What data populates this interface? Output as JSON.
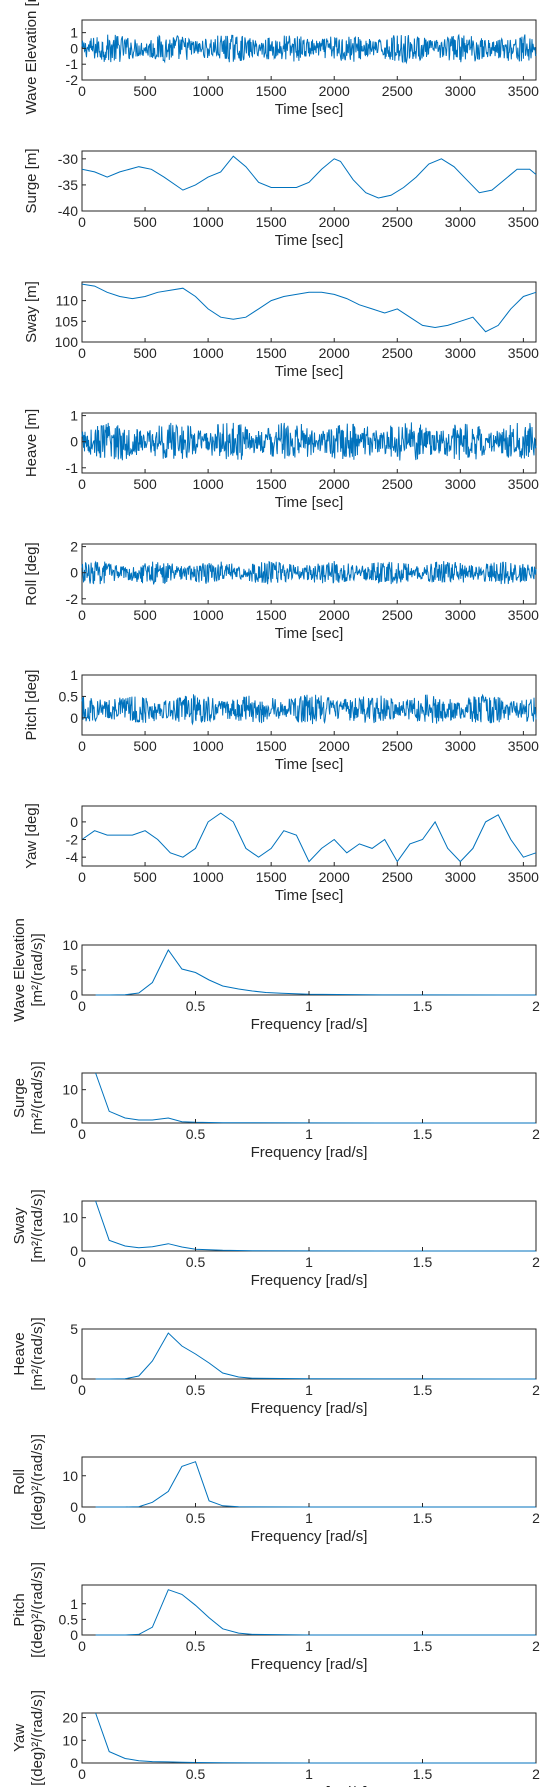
{
  "chart_data": [
    {
      "type": "line",
      "id": "ts-wave",
      "ylabel": "Wave Elevation [m]",
      "xlabel": "Time [sec]",
      "xlim": [
        0,
        3600
      ],
      "ylim": [
        -2,
        1.8
      ],
      "xticks": [
        "0",
        "500",
        "1000",
        "1500",
        "2000",
        "2500",
        "3000",
        "3500"
      ],
      "xtickvals": [
        0,
        500,
        1000,
        1500,
        2000,
        2500,
        3000,
        3500
      ],
      "yticks": [
        "-2",
        "-1",
        "0",
        "1"
      ],
      "ytickvals": [
        -2,
        -1,
        0,
        1
      ],
      "signal": {
        "kind": "noise",
        "amp": 0.9,
        "base": 0
      }
    },
    {
      "type": "line",
      "id": "ts-surge",
      "ylabel": "Surge [m]",
      "xlabel": "Time [sec]",
      "xlim": [
        0,
        3600
      ],
      "ylim": [
        -40,
        -28.5
      ],
      "xticks": [
        "0",
        "500",
        "1000",
        "1500",
        "2000",
        "2500",
        "3000",
        "3500"
      ],
      "xtickvals": [
        0,
        500,
        1000,
        1500,
        2000,
        2500,
        3000,
        3500
      ],
      "yticks": [
        "-40",
        "-35",
        "-30"
      ],
      "ytickvals": [
        -40,
        -35,
        -30
      ],
      "x": [
        0,
        100,
        200,
        300,
        450,
        550,
        650,
        800,
        900,
        1000,
        1100,
        1200,
        1300,
        1400,
        1500,
        1600,
        1700,
        1800,
        1900,
        2000,
        2050,
        2150,
        2250,
        2350,
        2450,
        2550,
        2650,
        2750,
        2850,
        2950,
        3050,
        3150,
        3250,
        3350,
        3450,
        3550,
        3600
      ],
      "y": [
        -32,
        -32.5,
        -33.5,
        -32.5,
        -31.5,
        -32,
        -33.5,
        -36,
        -35,
        -33.5,
        -32.5,
        -29.5,
        -31.5,
        -34.5,
        -35.5,
        -35.5,
        -35.5,
        -34.5,
        -32,
        -30,
        -30.5,
        -34,
        -36.5,
        -37.5,
        -37,
        -35.5,
        -33.5,
        -31,
        -30,
        -31.5,
        -34,
        -36.5,
        -36,
        -34,
        -32,
        -32,
        -33
      ]
    },
    {
      "type": "line",
      "id": "ts-sway",
      "ylabel": "Sway [m]",
      "xlabel": "Time [sec]",
      "xlim": [
        0,
        3600
      ],
      "ylim": [
        100,
        114.5
      ],
      "xticks": [
        "0",
        "500",
        "1000",
        "1500",
        "2000",
        "2500",
        "3000",
        "3500"
      ],
      "xtickvals": [
        0,
        500,
        1000,
        1500,
        2000,
        2500,
        3000,
        3500
      ],
      "yticks": [
        "100",
        "105",
        "110"
      ],
      "ytickvals": [
        100,
        105,
        110
      ],
      "x": [
        0,
        100,
        200,
        300,
        400,
        500,
        600,
        700,
        800,
        900,
        1000,
        1100,
        1200,
        1300,
        1400,
        1500,
        1600,
        1700,
        1800,
        1900,
        2000,
        2100,
        2200,
        2300,
        2400,
        2500,
        2600,
        2700,
        2800,
        2900,
        3000,
        3100,
        3200,
        3300,
        3400,
        3500,
        3600
      ],
      "y": [
        114,
        113.5,
        112,
        111,
        110.5,
        111,
        112,
        112.5,
        113,
        111,
        108,
        106,
        105.5,
        106,
        108,
        110,
        111,
        111.5,
        112,
        112,
        111.5,
        110.5,
        109,
        108,
        107,
        108,
        106,
        104,
        103.5,
        104,
        105,
        106,
        102.5,
        104,
        108,
        111,
        112
      ]
    },
    {
      "type": "line",
      "id": "ts-heave",
      "ylabel": "Heave [m]",
      "xlabel": "Time [sec]",
      "xlim": [
        0,
        3600
      ],
      "ylim": [
        -1.2,
        1.1
      ],
      "xticks": [
        "0",
        "500",
        "1000",
        "1500",
        "2000",
        "2500",
        "3000",
        "3500"
      ],
      "xtickvals": [
        0,
        500,
        1000,
        1500,
        2000,
        2500,
        3000,
        3500
      ],
      "yticks": [
        "-1",
        "0",
        "1"
      ],
      "ytickvals": [
        -1,
        0,
        1
      ],
      "signal": {
        "kind": "noise",
        "amp": 0.75,
        "base": 0
      }
    },
    {
      "type": "line",
      "id": "ts-roll",
      "ylabel": "Roll [deg]",
      "xlabel": "Time [sec]",
      "xlim": [
        0,
        3600
      ],
      "ylim": [
        -2.4,
        2.2
      ],
      "xticks": [
        "0",
        "500",
        "1000",
        "1500",
        "2000",
        "2500",
        "3000",
        "3500"
      ],
      "xtickvals": [
        0,
        500,
        1000,
        1500,
        2000,
        2500,
        3000,
        3500
      ],
      "yticks": [
        "-2",
        "0",
        "2"
      ],
      "ytickvals": [
        -2,
        0,
        2
      ],
      "signal": {
        "kind": "noise",
        "amp": 0.9,
        "base": 0
      }
    },
    {
      "type": "line",
      "id": "ts-pitch",
      "ylabel": "Pitch [deg]",
      "xlabel": "Time [sec]",
      "xlim": [
        0,
        3600
      ],
      "ylim": [
        -0.4,
        1
      ],
      "xticks": [
        "0",
        "500",
        "1000",
        "1500",
        "2000",
        "2500",
        "3000",
        "3500"
      ],
      "xtickvals": [
        0,
        500,
        1000,
        1500,
        2000,
        2500,
        3000,
        3500
      ],
      "yticks": [
        "0",
        "0.5",
        "1"
      ],
      "ytickvals": [
        0,
        0.5,
        1
      ],
      "signal": {
        "kind": "noise",
        "amp": 0.35,
        "base": 0.2
      }
    },
    {
      "type": "line",
      "id": "ts-yaw",
      "ylabel": "Yaw [deg]",
      "xlabel": "Time [sec]",
      "xlim": [
        0,
        3600
      ],
      "ylim": [
        -5,
        1.8
      ],
      "xticks": [
        "0",
        "500",
        "1000",
        "1500",
        "2000",
        "2500",
        "3000",
        "3500"
      ],
      "xtickvals": [
        0,
        500,
        1000,
        1500,
        2000,
        2500,
        3000,
        3500
      ],
      "yticks": [
        "-4",
        "-2",
        "0"
      ],
      "ytickvals": [
        -4,
        -2,
        0
      ],
      "x": [
        0,
        100,
        200,
        300,
        400,
        500,
        600,
        700,
        800,
        900,
        1000,
        1100,
        1200,
        1300,
        1400,
        1500,
        1600,
        1700,
        1800,
        1900,
        2000,
        2100,
        2200,
        2300,
        2400,
        2500,
        2600,
        2700,
        2800,
        2900,
        3000,
        3100,
        3200,
        3300,
        3400,
        3500,
        3600
      ],
      "y": [
        -2,
        -1,
        -1.5,
        -1.5,
        -1.5,
        -1,
        -2,
        -3.5,
        -4,
        -3,
        0,
        1,
        0,
        -3,
        -4,
        -3,
        -1,
        -1.5,
        -4.5,
        -3,
        -2,
        -3.5,
        -2.5,
        -3,
        -2,
        -4.5,
        -2.5,
        -2,
        0,
        -3,
        -4.5,
        -3,
        0,
        0.8,
        -2,
        -4,
        -3.5
      ]
    },
    {
      "type": "line",
      "id": "sp-wave",
      "ylabel": "Wave Elevation",
      "ylabel2": "[m²/(rad/s)]",
      "xlabel": "Frequency [rad/s]",
      "xlim": [
        0,
        2
      ],
      "ylim": [
        0,
        10
      ],
      "xticks": [
        "0",
        "0.5",
        "1",
        "1.5",
        "2"
      ],
      "xtickvals": [
        0,
        0.5,
        1,
        1.5,
        2
      ],
      "yticks": [
        "0",
        "5",
        "10"
      ],
      "ytickvals": [
        0,
        5,
        10
      ],
      "x": [
        0.06,
        0.12,
        0.19,
        0.25,
        0.31,
        0.38,
        0.44,
        0.5,
        0.56,
        0.62,
        0.69,
        0.75,
        0.81,
        0.88,
        0.94,
        1.0,
        1.25,
        1.5,
        2.0
      ],
      "y": [
        0,
        0,
        0.05,
        0.4,
        2.5,
        9.0,
        5.2,
        4.5,
        3.0,
        1.8,
        1.2,
        0.8,
        0.5,
        0.35,
        0.25,
        0.15,
        0.05,
        0.02,
        0
      ]
    },
    {
      "type": "line",
      "id": "sp-surge",
      "ylabel": "Surge",
      "ylabel2": "[m²/(rad/s)]",
      "xlabel": "Frequency [rad/s]",
      "xlim": [
        0,
        2
      ],
      "ylim": [
        0,
        15
      ],
      "xticks": [
        "0",
        "0.5",
        "1",
        "1.5",
        "2"
      ],
      "xtickvals": [
        0,
        0.5,
        1,
        1.5,
        2
      ],
      "yticks": [
        "0",
        "10"
      ],
      "ytickvals": [
        0,
        10
      ],
      "x": [
        0.06,
        0.12,
        0.19,
        0.25,
        0.31,
        0.38,
        0.44,
        0.5,
        0.62,
        0.75,
        1.0,
        1.5,
        2.0
      ],
      "y": [
        15,
        3.5,
        1.5,
        0.9,
        0.9,
        1.5,
        0.4,
        0.2,
        0.1,
        0.05,
        0.02,
        0.01,
        0
      ]
    },
    {
      "type": "line",
      "id": "sp-sway",
      "ylabel": "Sway",
      "ylabel2": "[m²/(rad/s)]",
      "xlabel": "Frequency [rad/s]",
      "xlim": [
        0,
        2
      ],
      "ylim": [
        0,
        15
      ],
      "xticks": [
        "0",
        "0.5",
        "1",
        "1.5",
        "2"
      ],
      "xtickvals": [
        0,
        0.5,
        1,
        1.5,
        2
      ],
      "yticks": [
        "0",
        "10"
      ],
      "ytickvals": [
        0,
        10
      ],
      "x": [
        0.06,
        0.12,
        0.19,
        0.25,
        0.31,
        0.38,
        0.44,
        0.5,
        0.62,
        0.75,
        1.0,
        1.5,
        2.0
      ],
      "y": [
        15,
        3.2,
        1.5,
        1.0,
        1.3,
        2.2,
        1.2,
        0.5,
        0.2,
        0.1,
        0.03,
        0.01,
        0
      ]
    },
    {
      "type": "line",
      "id": "sp-heave",
      "ylabel": "Heave",
      "ylabel2": "[m²/(rad/s)]",
      "xlabel": "Frequency [rad/s]",
      "xlim": [
        0,
        2
      ],
      "ylim": [
        0,
        5
      ],
      "xticks": [
        "0",
        "0.5",
        "1",
        "1.5",
        "2"
      ],
      "xtickvals": [
        0,
        0.5,
        1,
        1.5,
        2
      ],
      "yticks": [
        "0",
        "5"
      ],
      "ytickvals": [
        0,
        5
      ],
      "x": [
        0.06,
        0.12,
        0.19,
        0.25,
        0.31,
        0.38,
        0.44,
        0.5,
        0.56,
        0.62,
        0.69,
        0.75,
        1.0,
        1.5,
        2.0
      ],
      "y": [
        0,
        0,
        0.02,
        0.3,
        1.8,
        4.6,
        3.3,
        2.5,
        1.6,
        0.6,
        0.2,
        0.08,
        0.02,
        0.01,
        0
      ]
    },
    {
      "type": "line",
      "id": "sp-roll",
      "ylabel": "Roll",
      "ylabel2": "[(deg)²/(rad/s)]",
      "xlabel": "Frequency [rad/s]",
      "xlim": [
        0,
        2
      ],
      "ylim": [
        0,
        16
      ],
      "xticks": [
        "0",
        "0.5",
        "1",
        "1.5",
        "2"
      ],
      "xtickvals": [
        0,
        0.5,
        1,
        1.5,
        2
      ],
      "yticks": [
        "0",
        "10"
      ],
      "ytickvals": [
        0,
        10
      ],
      "x": [
        0.06,
        0.12,
        0.19,
        0.25,
        0.31,
        0.38,
        0.44,
        0.5,
        0.56,
        0.62,
        0.69,
        0.75,
        1.0,
        1.5,
        2.0
      ],
      "y": [
        0,
        0,
        0,
        0.1,
        1.5,
        5.0,
        13.0,
        14.5,
        2.0,
        0.4,
        0.1,
        0.02,
        0,
        0,
        0
      ]
    },
    {
      "type": "line",
      "id": "sp-pitch",
      "ylabel": "Pitch",
      "ylabel2": "[(deg)²/(rad/s)]",
      "xlabel": "Frequency [rad/s]",
      "xlim": [
        0,
        2
      ],
      "ylim": [
        0,
        1.6
      ],
      "xticks": [
        "0",
        "0.5",
        "1",
        "1.5",
        "2"
      ],
      "xtickvals": [
        0,
        0.5,
        1,
        1.5,
        2
      ],
      "yticks": [
        "0",
        "0.5",
        "1"
      ],
      "ytickvals": [
        0,
        0.5,
        1
      ],
      "x": [
        0.06,
        0.12,
        0.19,
        0.25,
        0.31,
        0.38,
        0.44,
        0.5,
        0.56,
        0.62,
        0.69,
        0.75,
        1.0,
        1.5,
        2.0
      ],
      "y": [
        0,
        0,
        0,
        0.02,
        0.25,
        1.45,
        1.3,
        0.95,
        0.55,
        0.2,
        0.06,
        0.02,
        0,
        0,
        0
      ]
    },
    {
      "type": "line",
      "id": "sp-yaw",
      "ylabel": "Yaw",
      "ylabel2": "[(deg)²/(rad/s)]",
      "xlabel": "Frequency [rad/s]",
      "xlim": [
        0,
        2
      ],
      "ylim": [
        0,
        22
      ],
      "xticks": [
        "0",
        "0.5",
        "1",
        "1.5",
        "2"
      ],
      "xtickvals": [
        0,
        0.5,
        1,
        1.5,
        2
      ],
      "yticks": [
        "0",
        "10",
        "20"
      ],
      "ytickvals": [
        0,
        10,
        20
      ],
      "x": [
        0.06,
        0.12,
        0.19,
        0.25,
        0.31,
        0.38,
        0.44,
        0.5,
        0.62,
        0.75,
        1.0,
        1.5,
        2.0
      ],
      "y": [
        22,
        5,
        2,
        1,
        0.6,
        0.5,
        0.3,
        0.2,
        0.1,
        0.05,
        0.02,
        0.01,
        0
      ]
    }
  ],
  "style": {
    "line_color": "#0072BD",
    "axis_color": "#262626"
  }
}
